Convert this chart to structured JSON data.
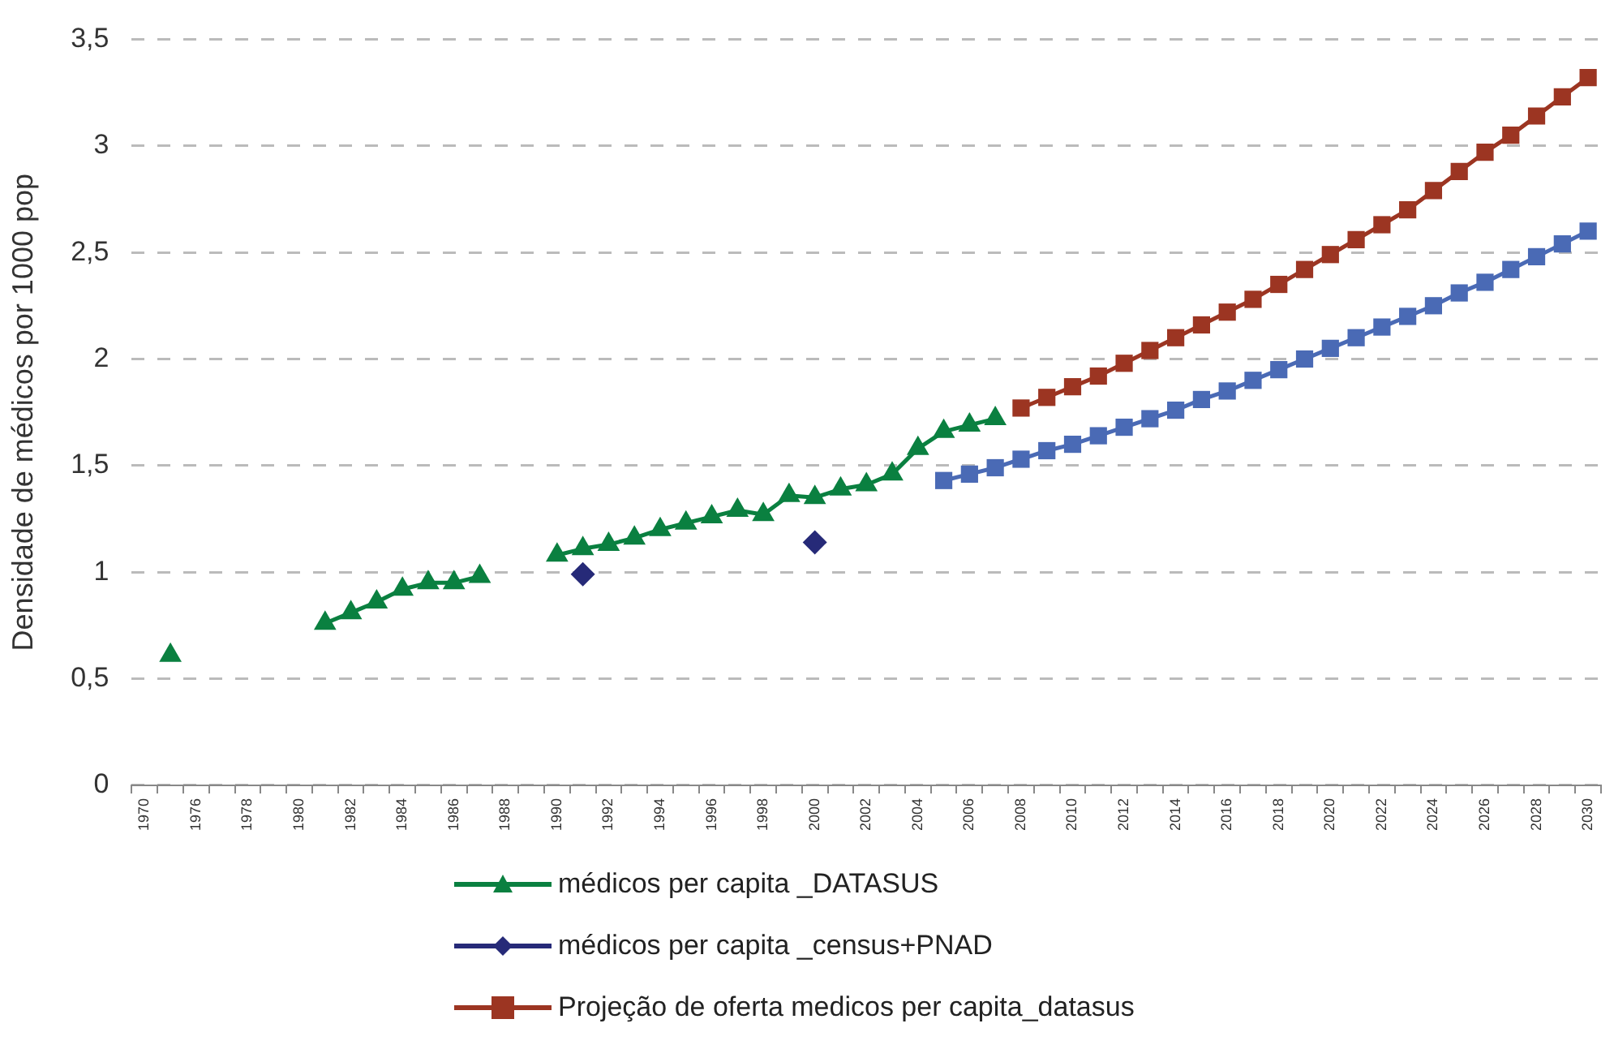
{
  "chart_data": {
    "type": "line",
    "ylabel": "Densidade de médicos por 1000 pop",
    "categories": [
      "1970",
      null,
      "1976",
      null,
      "1978",
      null,
      "1980",
      null,
      "1982",
      null,
      "1984",
      null,
      "1986",
      null,
      "1988",
      null,
      "1990",
      null,
      "1992",
      null,
      "1994",
      null,
      "1996",
      null,
      "1998",
      null,
      "2000",
      null,
      "2002",
      null,
      "2004",
      null,
      "2006",
      null,
      "2008",
      null,
      "2010",
      null,
      "2012",
      null,
      "2014",
      null,
      "2016",
      null,
      "2018",
      null,
      "2020",
      null,
      "2022",
      null,
      "2024",
      null,
      "2026",
      null,
      "2028",
      null,
      "2030"
    ],
    "series": [
      {
        "name": "médicos per capita _DATASUS",
        "color": "#0a8040",
        "marker": "triangle",
        "values": [
          null,
          0.61,
          null,
          null,
          null,
          null,
          null,
          0.76,
          0.81,
          0.86,
          0.92,
          0.95,
          0.95,
          0.98,
          null,
          null,
          1.08,
          1.11,
          1.13,
          1.16,
          1.2,
          1.23,
          1.26,
          1.29,
          1.27,
          1.36,
          1.35,
          1.39,
          1.41,
          1.46,
          1.58,
          1.66,
          1.69,
          1.72,
          null,
          null,
          null,
          null,
          null,
          null,
          null,
          null,
          null,
          null,
          null,
          null,
          null,
          null,
          null,
          null,
          null,
          null,
          null,
          null,
          null,
          null,
          null
        ]
      },
      {
        "name": "médicos per capita _census+PNAD",
        "type": "scatter",
        "color": "#262a78",
        "marker": "diamond",
        "values": [
          null,
          null,
          null,
          null,
          null,
          null,
          null,
          null,
          null,
          null,
          null,
          null,
          null,
          null,
          null,
          null,
          null,
          0.99,
          null,
          null,
          null,
          null,
          null,
          null,
          null,
          null,
          1.14,
          null,
          null,
          null,
          null,
          null,
          null,
          null,
          null,
          null,
          null,
          null,
          null,
          null,
          null,
          null,
          null,
          null,
          null,
          null,
          null,
          null,
          null,
          null,
          null,
          null,
          null,
          null,
          null,
          null,
          null
        ]
      },
      {
        "name": "Projeção de oferta medicos per capita_datasus",
        "color": "#9c3522",
        "marker": "square",
        "values": [
          null,
          null,
          null,
          null,
          null,
          null,
          null,
          null,
          null,
          null,
          null,
          null,
          null,
          null,
          null,
          null,
          null,
          null,
          null,
          null,
          null,
          null,
          null,
          null,
          null,
          null,
          null,
          null,
          null,
          null,
          null,
          null,
          null,
          null,
          1.77,
          1.82,
          1.87,
          1.92,
          1.98,
          2.04,
          2.1,
          2.16,
          2.22,
          2.28,
          2.35,
          2.42,
          2.49,
          2.56,
          2.63,
          2.7,
          2.79,
          2.88,
          2.97,
          3.05,
          3.14,
          3.23,
          3.32
        ]
      },
      {
        "color": "#4a6ab5",
        "marker": "square",
        "values": [
          null,
          null,
          null,
          null,
          null,
          null,
          null,
          null,
          null,
          null,
          null,
          null,
          null,
          null,
          null,
          null,
          null,
          null,
          null,
          null,
          null,
          null,
          null,
          null,
          null,
          null,
          null,
          null,
          null,
          null,
          null,
          1.43,
          1.46,
          1.49,
          1.53,
          1.57,
          1.6,
          1.64,
          1.68,
          1.72,
          1.76,
          1.81,
          1.85,
          1.9,
          1.95,
          2.0,
          2.05,
          2.1,
          2.15,
          2.2,
          2.25,
          2.31,
          2.36,
          2.42,
          2.48,
          2.54,
          2.6
        ]
      }
    ],
    "ylim": [
      0,
      3.5
    ],
    "yticks": [
      0,
      {
        "value": 0.5,
        "label": "0,5"
      },
      1,
      {
        "value": 1.5,
        "label": "1,5"
      },
      2,
      {
        "value": 2.5,
        "label": "2,5"
      },
      3,
      {
        "value": 3.5,
        "label": "3,5"
      }
    ],
    "grid": "y",
    "legend": "bottom"
  }
}
